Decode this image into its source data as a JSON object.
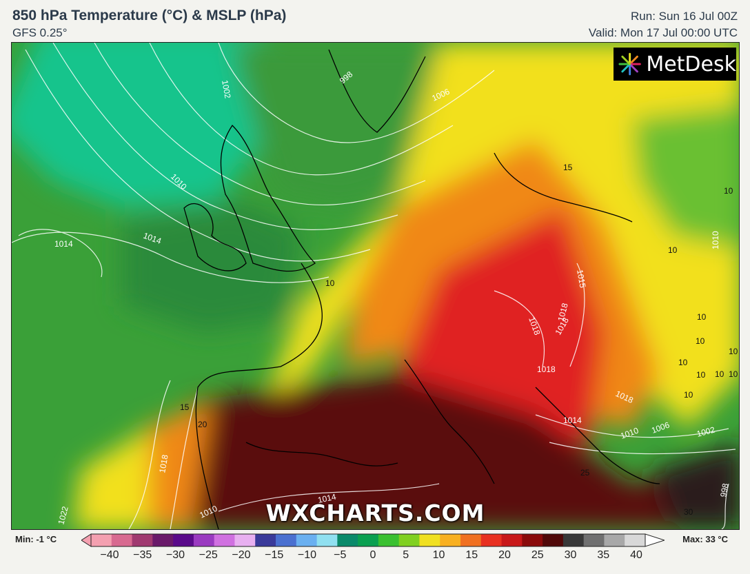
{
  "header": {
    "title": "850 hPa Temperature (°C) & MSLP (hPa)",
    "model": "GFS 0.25°",
    "run": "Run: Sun 16 Jul 00Z",
    "valid": "Valid: Mon 17 Jul 00:00 UTC"
  },
  "brand": {
    "logo_text": "MetDesk",
    "watermark": "WXCHARTS.COM"
  },
  "map": {
    "isobar_labels": [
      "1002",
      "998",
      "1006",
      "1010",
      "1014",
      "1014",
      "1018",
      "1018",
      "1022",
      "1010",
      "1014",
      "1018",
      "1018",
      "1018",
      "1014",
      "1010",
      "1006",
      "1002",
      "998",
      "1010",
      "1015",
      "1018"
    ],
    "temperature_labels": [
      "10",
      "10",
      "10",
      "10",
      "10",
      "10",
      "10",
      "10",
      "10",
      "15",
      "20",
      "15",
      "25",
      "30",
      "10",
      "10"
    ],
    "colors": {
      "cold": "#11c89a",
      "cool": "#2e8e3e",
      "mild": "#56b830",
      "warm": "#f5e020",
      "hot": "#f08a18",
      "very_hot": "#e02020",
      "extreme": "#5a0a0a"
    }
  },
  "legend": {
    "min_label": "Min: -1 °C",
    "max_label": "Max: 33 °C",
    "ticks": [
      "−40",
      "−35",
      "−30",
      "−25",
      "−20",
      "−15",
      "−10",
      "−5",
      "0",
      "5",
      "10",
      "15",
      "20",
      "25",
      "30",
      "35",
      "40"
    ],
    "colors": [
      "#f4a0b0",
      "#d86a90",
      "#a03a70",
      "#6a1a6a",
      "#5a0a8a",
      "#9a3ac0",
      "#d070e0",
      "#e8b0f0",
      "#3a3a9a",
      "#4a70d0",
      "#6ab0f0",
      "#90e0f0",
      "#0a8a6a",
      "#0aa050",
      "#3ac030",
      "#80d020",
      "#f0e020",
      "#f8b020",
      "#f07020",
      "#e83020",
      "#c81818",
      "#8a0a0a",
      "#500808",
      "#383838",
      "#707070",
      "#a8a8a8",
      "#d8d8d8"
    ]
  }
}
